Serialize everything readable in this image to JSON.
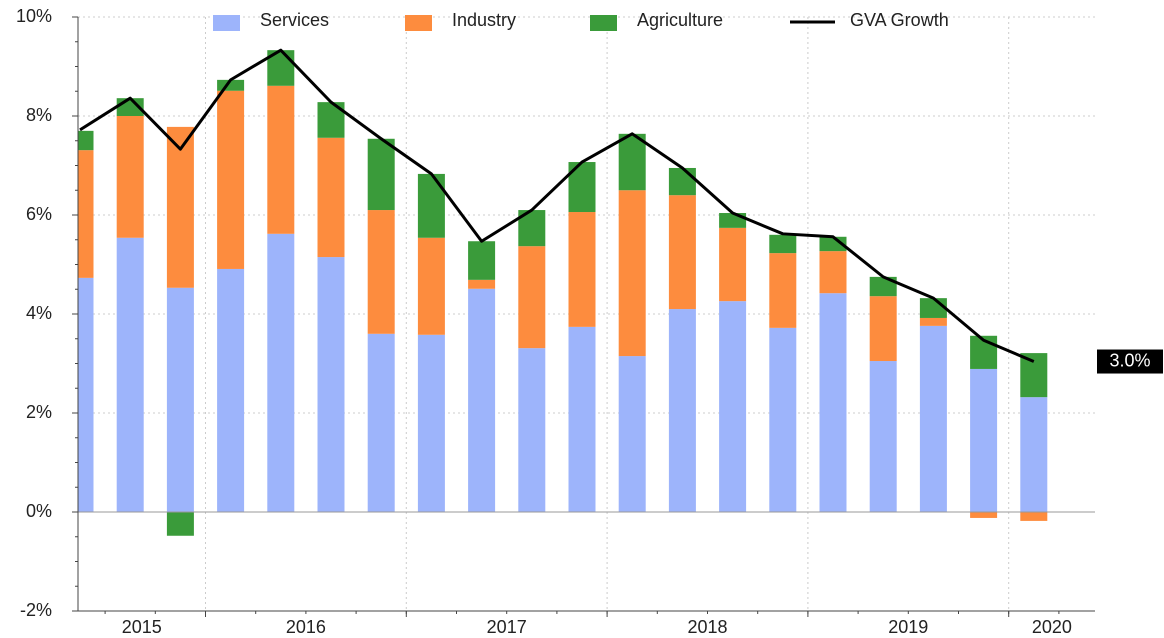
{
  "chart_data": {
    "type": "stacked-bar-line",
    "categories": [
      "2015",
      "2015",
      "2015",
      "2016",
      "2016",
      "2016",
      "2016",
      "2017",
      "2017",
      "2017",
      "2017",
      "2018",
      "2018",
      "2018",
      "2018",
      "2019",
      "2019",
      "2019",
      "2019",
      "2020"
    ],
    "series": [
      {
        "name": "Services",
        "color": "#9db4fb",
        "type": "bar",
        "values": [
          4.73,
          5.54,
          4.53,
          4.91,
          5.62,
          5.15,
          3.6,
          3.58,
          4.51,
          3.31,
          3.74,
          3.15,
          4.1,
          4.26,
          3.72,
          4.42,
          3.05,
          3.76,
          2.89,
          2.32
        ]
      },
      {
        "name": "Industry",
        "color": "#fd8c3e",
        "type": "bar",
        "values": [
          2.58,
          2.46,
          3.25,
          3.6,
          2.99,
          2.41,
          2.5,
          1.96,
          0.18,
          2.06,
          2.32,
          3.35,
          2.3,
          1.48,
          1.51,
          0.85,
          1.31,
          0.16,
          -0.12,
          -0.18
        ]
      },
      {
        "name": "Agriculture",
        "color": "#3a9b3a",
        "type": "bar",
        "values": [
          0.39,
          0.36,
          -0.48,
          0.22,
          0.72,
          0.72,
          1.44,
          1.29,
          0.78,
          0.73,
          1.01,
          1.14,
          0.55,
          0.3,
          0.37,
          0.29,
          0.39,
          0.4,
          0.67,
          0.89
        ]
      },
      {
        "name": "GVA Growth",
        "color": "#000000",
        "type": "line",
        "values": [
          7.72,
          8.36,
          7.33,
          8.73,
          9.33,
          8.28,
          7.54,
          6.83,
          5.47,
          6.1,
          7.07,
          7.64,
          6.95,
          6.04,
          5.62,
          5.56,
          4.75,
          4.32,
          3.47,
          3.04
        ],
        "value_labels": [
          null,
          null,
          null,
          null,
          null,
          null,
          null,
          null,
          null,
          null,
          null,
          null,
          null,
          null,
          null,
          null,
          null,
          null,
          null,
          "3.0%"
        ]
      }
    ],
    "ylim": [
      -2,
      10
    ],
    "yticks": [
      {
        "value": -2,
        "label": "-2%"
      },
      {
        "value": 0,
        "label": "0%"
      },
      {
        "value": 2,
        "label": "2%"
      },
      {
        "value": 4,
        "label": "4%"
      },
      {
        "value": 6,
        "label": "6%"
      },
      {
        "value": 8,
        "label": "8%"
      },
      {
        "value": 10,
        "label": "10%"
      }
    ],
    "grid": true,
    "legend": "top"
  }
}
